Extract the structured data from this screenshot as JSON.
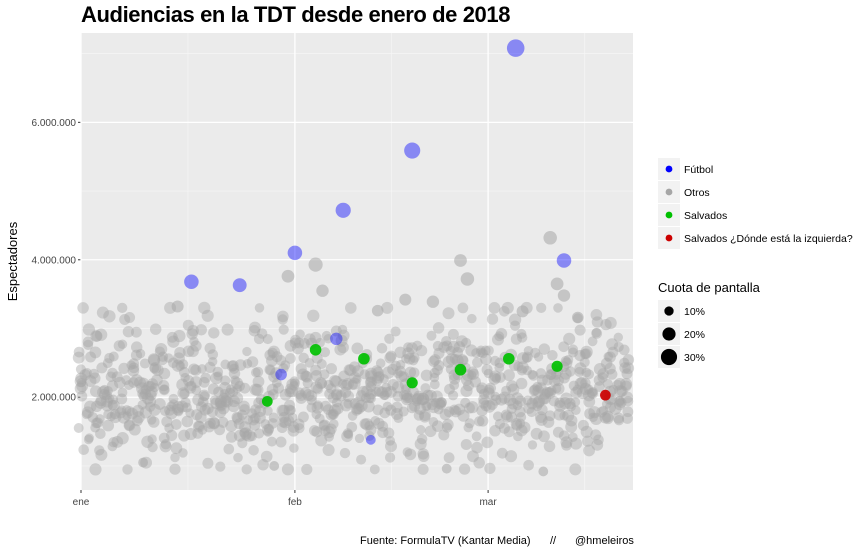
{
  "chart_data": {
    "type": "scatter",
    "title": "Audiencias en la TDT desde enero de 2018",
    "xlabel": "",
    "ylabel": "Espectadores",
    "x_domain": [
      "2018-01-01",
      "2018-03-22"
    ],
    "ylim": [
      650000,
      7300000
    ],
    "x_ticks": [
      {
        "date": "2018-01-01",
        "label": "ene"
      },
      {
        "date": "2018-02-01",
        "label": "feb"
      },
      {
        "date": "2018-03-01",
        "label": "mar"
      }
    ],
    "y_ticks": [
      {
        "value": 2000000,
        "label": "2.000.000"
      },
      {
        "value": 4000000,
        "label": "4.000.000"
      },
      {
        "value": 6000000,
        "label": "6.000.000"
      }
    ],
    "grid": true,
    "legend_position": "right",
    "color_legend": {
      "title": "",
      "entries": [
        {
          "key": "futbol",
          "label": "Fútbol",
          "color": "#0000ff"
        },
        {
          "key": "otros",
          "label": "Otros",
          "color": "#a6a6a6"
        },
        {
          "key": "salvados",
          "label": "Salvados",
          "color": "#00c000"
        },
        {
          "key": "salvados_izq",
          "label": "Salvados ¿Dónde está la izquierda?",
          "color": "#cc0000"
        }
      ]
    },
    "size_legend": {
      "title": "Cuota de pantalla",
      "entries": [
        {
          "label": "10%",
          "share": 10
        },
        {
          "label": "20%",
          "share": 20
        },
        {
          "label": "30%",
          "share": 30
        }
      ]
    },
    "otros_summary": {
      "days": 80,
      "points_per_day": 12,
      "median": 2050000,
      "typical_min": 950000,
      "typical_max": 3300000
    },
    "series": [
      {
        "name": "Fútbol",
        "key": "futbol",
        "points": [
          {
            "date": "2018-01-17",
            "value": 3680000,
            "share": 22
          },
          {
            "date": "2018-01-24",
            "value": 3630000,
            "share": 20
          },
          {
            "date": "2018-01-30",
            "value": 2330000,
            "share": 14
          },
          {
            "date": "2018-02-01",
            "value": 4100000,
            "share": 22
          },
          {
            "date": "2018-02-07",
            "value": 2850000,
            "share": 16
          },
          {
            "date": "2018-02-08",
            "value": 4720000,
            "share": 24
          },
          {
            "date": "2018-02-12",
            "value": 1380000,
            "share": 10
          },
          {
            "date": "2018-02-18",
            "value": 5590000,
            "share": 27
          },
          {
            "date": "2018-03-05",
            "value": 7080000,
            "share": 32
          },
          {
            "date": "2018-03-12",
            "value": 3990000,
            "share": 22
          }
        ]
      },
      {
        "name": "Salvados",
        "key": "salvados",
        "points": [
          {
            "date": "2018-01-28",
            "value": 1940000,
            "share": 12
          },
          {
            "date": "2018-02-04",
            "value": 2690000,
            "share": 14
          },
          {
            "date": "2018-02-11",
            "value": 2560000,
            "share": 14
          },
          {
            "date": "2018-02-18",
            "value": 2210000,
            "share": 13
          },
          {
            "date": "2018-02-25",
            "value": 2400000,
            "share": 14
          },
          {
            "date": "2018-03-04",
            "value": 2560000,
            "share": 14
          },
          {
            "date": "2018-03-11",
            "value": 2450000,
            "share": 13
          }
        ]
      },
      {
        "name": "Salvados ¿Dónde está la izquierda?",
        "key": "salvados_izq",
        "points": [
          {
            "date": "2018-03-18",
            "value": 2030000,
            "share": 12
          }
        ]
      }
    ],
    "otros_highlights": [
      {
        "date": "2018-02-04",
        "value": 3930000,
        "share": 21
      },
      {
        "date": "2018-03-10",
        "value": 4320000,
        "share": 19
      },
      {
        "date": "2018-01-31",
        "value": 3760000,
        "share": 17
      },
      {
        "date": "2018-02-05",
        "value": 3550000,
        "share": 16
      },
      {
        "date": "2018-02-25",
        "value": 3990000,
        "share": 17
      },
      {
        "date": "2018-02-26",
        "value": 3720000,
        "share": 19
      },
      {
        "date": "2018-03-11",
        "value": 3650000,
        "share": 17
      },
      {
        "date": "2018-03-12",
        "value": 3480000,
        "share": 16
      },
      {
        "date": "2018-02-21",
        "value": 3390000,
        "share": 16
      },
      {
        "date": "2018-02-17",
        "value": 3420000,
        "share": 15
      },
      {
        "date": "2018-01-15",
        "value": 3320000,
        "share": 15
      },
      {
        "date": "2018-03-06",
        "value": 3250000,
        "share": 15
      },
      {
        "date": "2018-03-14",
        "value": 3160000,
        "share": 14
      },
      {
        "date": "2018-02-13",
        "value": 3260000,
        "share": 14
      },
      {
        "date": "2018-02-23",
        "value": 960000,
        "share": 10
      },
      {
        "date": "2018-03-09",
        "value": 920000,
        "share": 10
      },
      {
        "date": "2018-01-10",
        "value": 1050000,
        "share": 10
      },
      {
        "date": "2018-01-29",
        "value": 1000000,
        "share": 10
      }
    ]
  },
  "caption": {
    "source": "Fuente: FormulaTV (Kantar Media)",
    "separator": "//",
    "handle": "@hmeleiros"
  }
}
